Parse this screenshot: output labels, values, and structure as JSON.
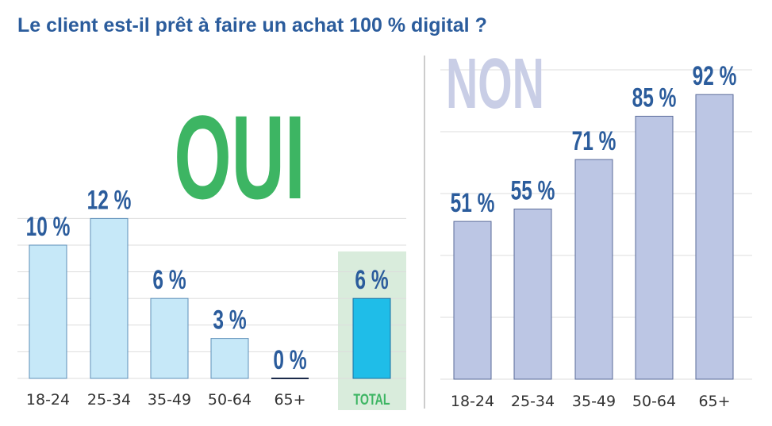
{
  "title": "Le client est-il prêt à faire un achat 100 % digital ?",
  "colors": {
    "title": "#2b5c9c",
    "oui": "#3db563",
    "non_label": "#c9cee6",
    "oui_bar": "#c6e8f8",
    "total_bar": "#1fbde8",
    "total_bg": "#d9ecdc",
    "non_bar": "#bcc6e4",
    "value_label": "#2b5c9c",
    "grid": "#dddddd"
  },
  "chart_data": [
    {
      "type": "bar",
      "heading": "OUI",
      "categories": [
        "18-24",
        "25-34",
        "35-49",
        "50-64",
        "65+",
        "TOTAL"
      ],
      "values": [
        10,
        12,
        6,
        3,
        0,
        6
      ],
      "labels": [
        "10 %",
        "12 %",
        "6 %",
        "3 %",
        "0 %",
        "6 %"
      ],
      "highlight": "TOTAL",
      "ylim": [
        0,
        12
      ],
      "grid": true
    },
    {
      "type": "bar",
      "heading": "NON",
      "categories": [
        "18-24",
        "25-34",
        "35-49",
        "50-64",
        "65+"
      ],
      "values": [
        51,
        55,
        71,
        85,
        92
      ],
      "labels": [
        "51 %",
        "55 %",
        "71 %",
        "85 %",
        "92 %"
      ],
      "ylim": [
        0,
        100
      ],
      "grid": true
    }
  ]
}
